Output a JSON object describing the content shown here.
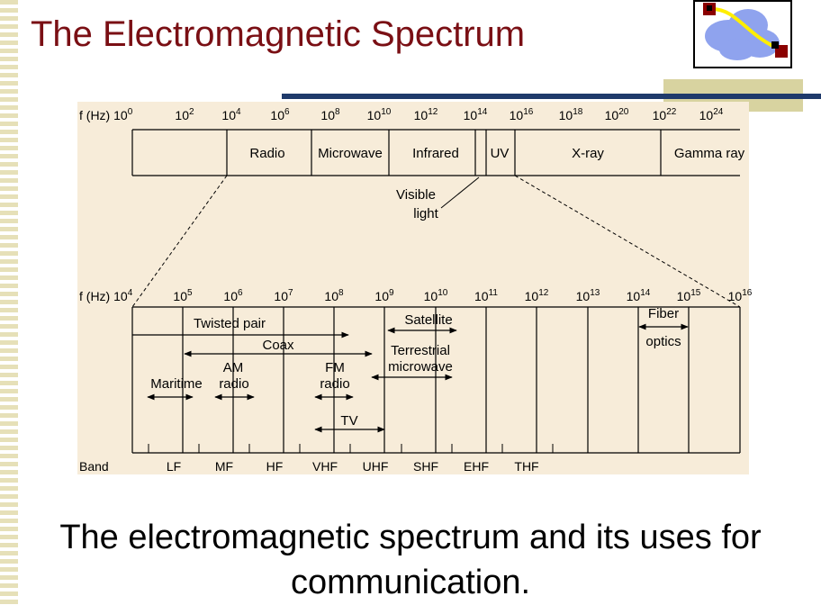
{
  "slide": {
    "title": "The Electromagnetic Spectrum",
    "caption_line1": "The electromagnetic spectrum and its uses for",
    "caption_line2": "communication.",
    "title_color": "#7a0f14",
    "sidebar_color": "#e6e0b8",
    "accent_navy": "#1f3a6b",
    "accent_khaki": "#d8d3a0"
  },
  "logo": {
    "icon": "cloud-network-icon",
    "cloud_color": "#8fa3ee",
    "link_color": "#ffee00",
    "node_color": "#8b0000"
  },
  "diagram": {
    "background": "#f7ecd9",
    "top_axis_prefix": "f (Hz) 10",
    "top_axis_prefix_exp": "0",
    "top_ticks": [
      {
        "base": "10",
        "exp": "2"
      },
      {
        "base": "10",
        "exp": "4"
      },
      {
        "base": "10",
        "exp": "6"
      },
      {
        "base": "10",
        "exp": "8"
      },
      {
        "base": "10",
        "exp": "10"
      },
      {
        "base": "10",
        "exp": "12"
      },
      {
        "base": "10",
        "exp": "14"
      },
      {
        "base": "10",
        "exp": "16"
      },
      {
        "base": "10",
        "exp": "18"
      },
      {
        "base": "10",
        "exp": "20"
      },
      {
        "base": "10",
        "exp": "22"
      },
      {
        "base": "10",
        "exp": "24"
      }
    ],
    "top_regions": [
      "Radio",
      "Microwave",
      "Infrared",
      "UV",
      "X-ray",
      "Gamma ray"
    ],
    "visible_light_line1": "Visible",
    "visible_light_line2": "light",
    "bottom_axis_prefix": "f (Hz) 10",
    "bottom_axis_prefix_exp": "4",
    "bottom_ticks": [
      {
        "base": "10",
        "exp": "5"
      },
      {
        "base": "10",
        "exp": "6"
      },
      {
        "base": "10",
        "exp": "7"
      },
      {
        "base": "10",
        "exp": "8"
      },
      {
        "base": "10",
        "exp": "9"
      },
      {
        "base": "10",
        "exp": "10"
      },
      {
        "base": "10",
        "exp": "11"
      },
      {
        "base": "10",
        "exp": "12"
      },
      {
        "base": "10",
        "exp": "13"
      },
      {
        "base": "10",
        "exp": "14"
      },
      {
        "base": "10",
        "exp": "15"
      },
      {
        "base": "10",
        "exp": "16"
      }
    ],
    "media": {
      "twisted_pair": "Twisted pair",
      "coax": "Coax",
      "am_radio_1": "AM",
      "am_radio_2": "radio",
      "maritime": "Maritime",
      "fm_radio_1": "FM",
      "fm_radio_2": "radio",
      "tv": "TV",
      "satellite": "Satellite",
      "terrestrial_1": "Terrestrial",
      "terrestrial_2": "microwave",
      "fiber_1": "Fiber",
      "fiber_2": "optics"
    },
    "band_label": "Band",
    "bands": [
      "LF",
      "MF",
      "HF",
      "VHF",
      "UHF",
      "SHF",
      "EHF",
      "THF"
    ]
  }
}
